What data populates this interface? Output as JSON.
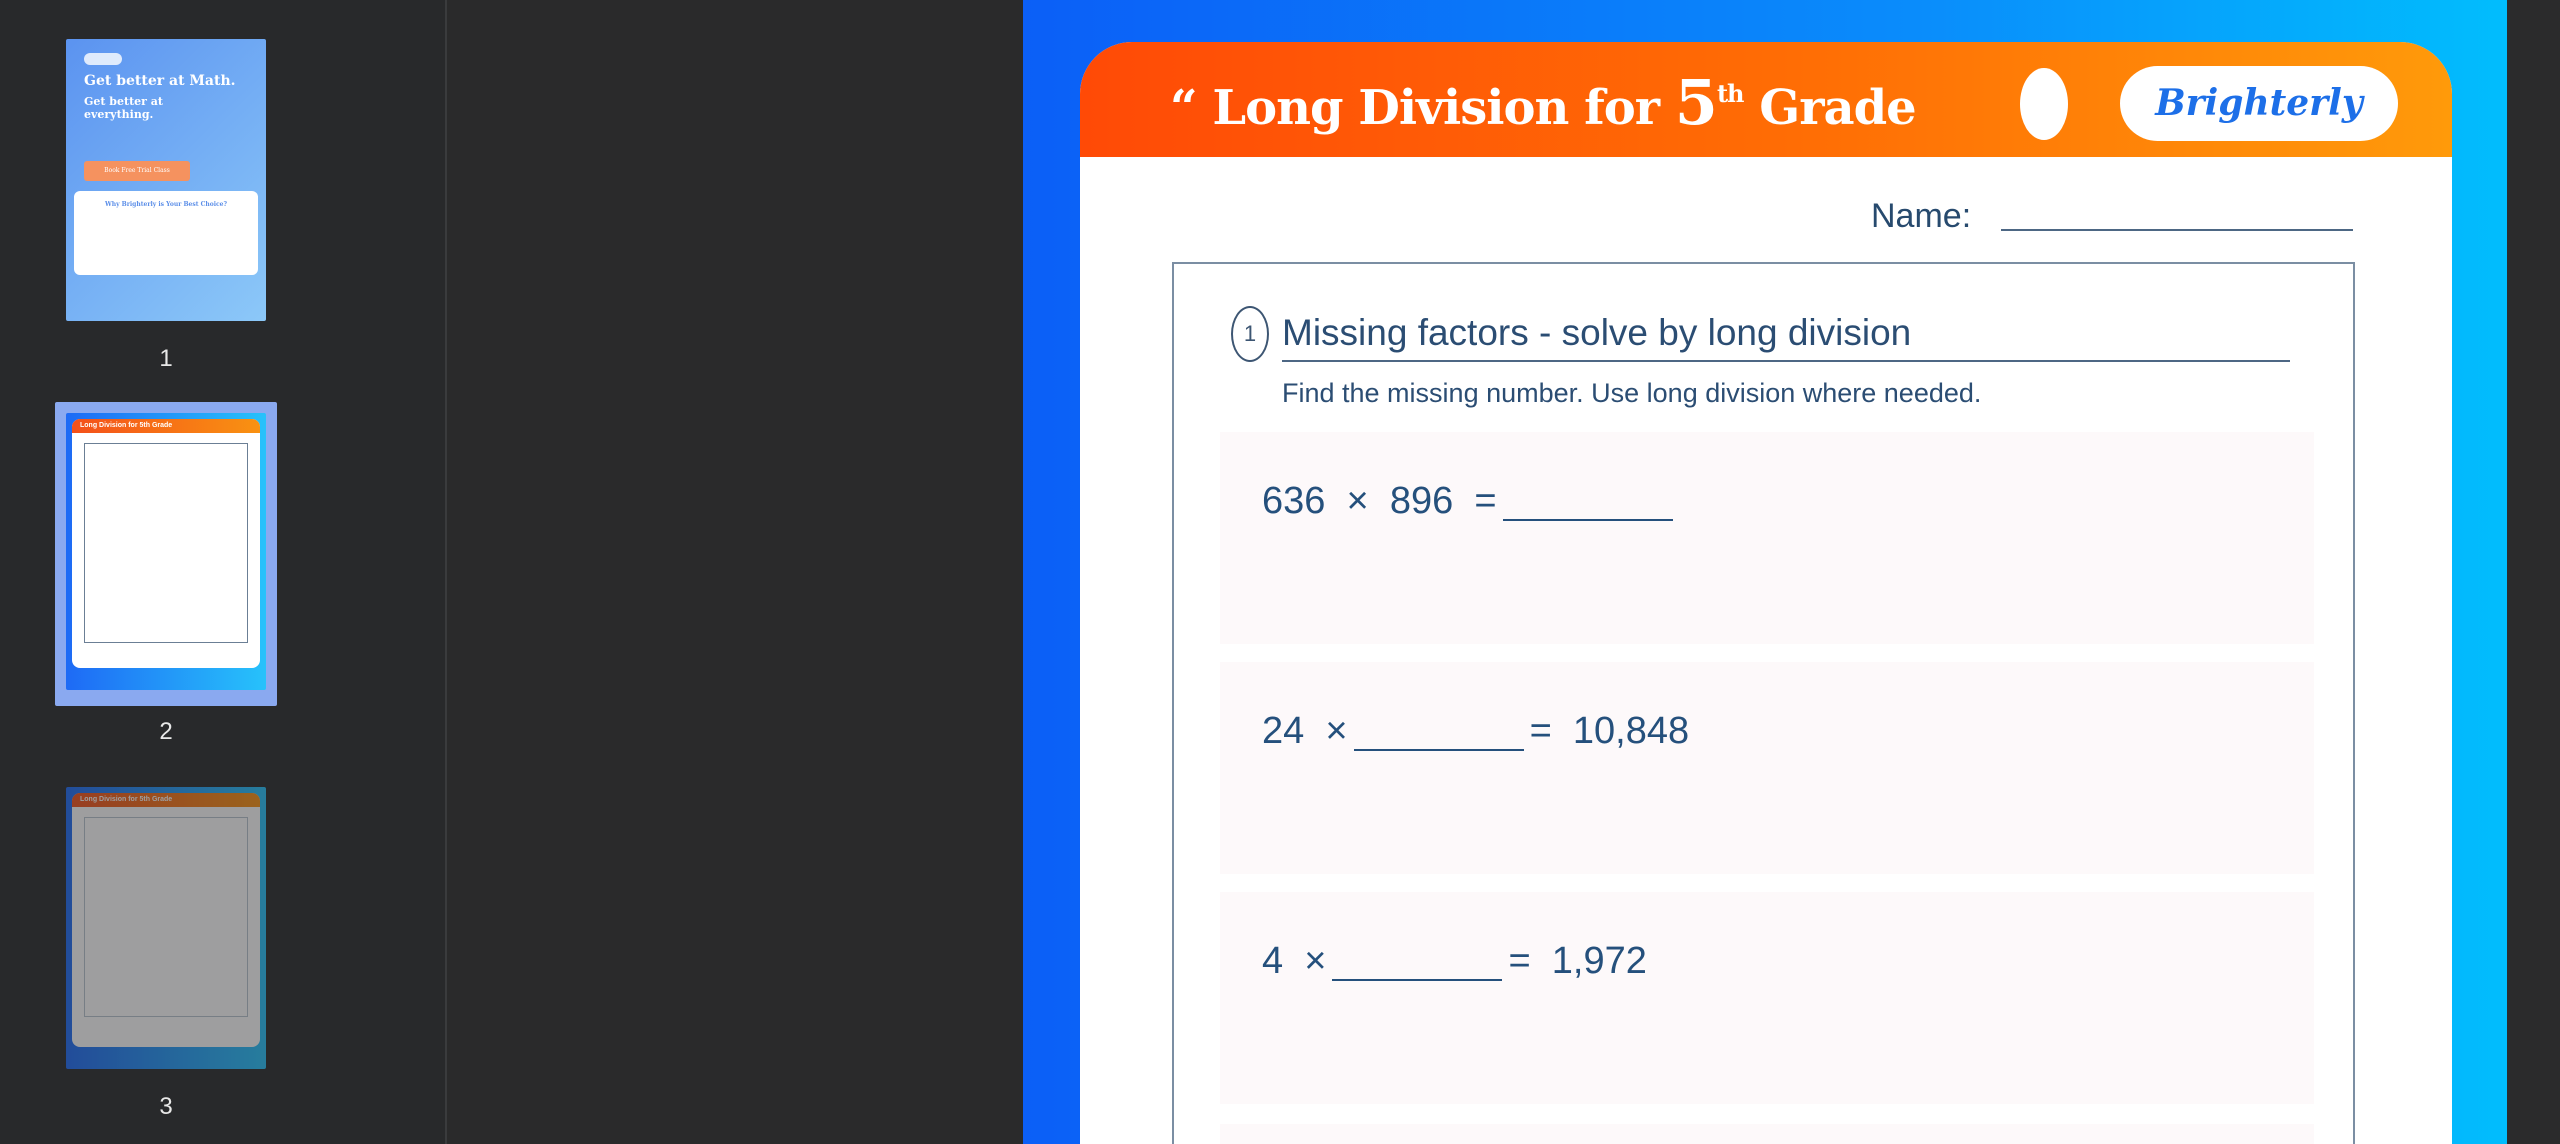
{
  "sidebar": {
    "pages": [
      {
        "label": "1",
        "headline": "Get better at Math.",
        "sub": "Get better at everything.",
        "cta": "Book Free Trial Class",
        "why": "Why Brighterly is Your Best Choice?"
      },
      {
        "label": "2",
        "header": "Long Division for 5th Grade",
        "selected": true
      },
      {
        "label": "3",
        "header": "Long Division for 5th Grade"
      }
    ]
  },
  "worksheet": {
    "title_pre": "“ Long Division for ",
    "title_num": "5",
    "title_sup": "th",
    "title_post": " Grade",
    "logo": "Brighterly",
    "name_label": "Name:",
    "section_number": "1",
    "section_title": "Missing factors - solve by long division",
    "instructions": "Find the missing number. Use long division where needed.",
    "problems": [
      {
        "left": "636  ×  896  =",
        "right": ""
      },
      {
        "left": "24  ×",
        "right": "=  10,848"
      },
      {
        "left": "4  ×",
        "right": "=  1,972"
      }
    ]
  },
  "colors": {
    "header_start": "#ff4a06",
    "header_end": "#ff9a0a",
    "page_bg_start": "#0b5ff7",
    "page_bg_end": "#01bdfd",
    "text": "#25507c"
  }
}
